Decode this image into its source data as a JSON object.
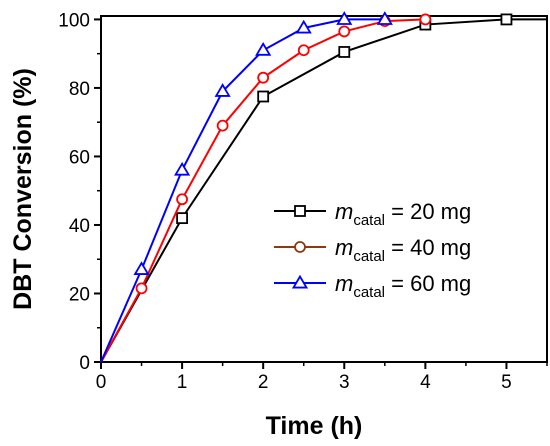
{
  "chart_data": {
    "type": "line",
    "xlabel": "Time (h)",
    "ylabel": "DBT Conversion (%)",
    "xlim": [
      0,
      5.5
    ],
    "ylim": [
      0,
      101
    ],
    "x_ticks": [
      "0",
      "1",
      "2",
      "3",
      "4",
      "5"
    ],
    "y_ticks": [
      "0",
      "20",
      "40",
      "60",
      "80",
      "100"
    ],
    "grid": false,
    "legend_position": "center-right",
    "series": [
      {
        "name": "m_catal = 20 mg",
        "legend": {
          "symbol": "m",
          "sub": "catal",
          "rest": " = 20 mg"
        },
        "color": "#000000",
        "marker": "square",
        "x": [
          0,
          1,
          2,
          3,
          4,
          5,
          5.5
        ],
        "y": [
          0,
          42,
          77.5,
          90.5,
          98.5,
          100,
          100
        ]
      },
      {
        "name": "m_catal = 40 mg",
        "legend": {
          "symbol": "m",
          "sub": "catal",
          "rest": " = 40 mg"
        },
        "color": "#ff0000",
        "legend_color": "#8b3a0f",
        "marker": "circle",
        "x": [
          0,
          0.5,
          1,
          1.5,
          2,
          2.5,
          3,
          3.5,
          4
        ],
        "y": [
          0,
          21.5,
          47.5,
          69,
          83,
          91,
          96.5,
          99.5,
          100
        ]
      },
      {
        "name": "m_catal = 60 mg",
        "legend": {
          "symbol": "m",
          "sub": "catal",
          "rest": " = 60 mg"
        },
        "color": "#0000ff",
        "marker": "triangle",
        "x": [
          0,
          0.5,
          1,
          1.5,
          2,
          2.5,
          3,
          3.5
        ],
        "y": [
          0,
          27,
          56,
          79,
          91,
          97.5,
          100,
          100
        ]
      }
    ]
  }
}
